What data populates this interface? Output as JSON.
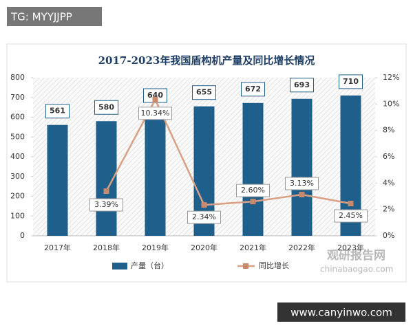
{
  "chart_data": {
    "type": "bar-line",
    "title": "2017-2023年我国盾构机产量及同比增长情况",
    "categories": [
      "2017年",
      "2018年",
      "2019年",
      "2020年",
      "2021年",
      "2022年",
      "2023年"
    ],
    "series": [
      {
        "name": "产量（台）",
        "type": "bar",
        "color": "#1f5f8b",
        "values": [
          561,
          580,
          640,
          655,
          672,
          693,
          710
        ]
      },
      {
        "name": "同比增长",
        "type": "line",
        "axis": "y2",
        "color": "#d9a084",
        "values": [
          null,
          3.39,
          10.34,
          2.34,
          2.6,
          3.13,
          2.45
        ],
        "value_labels": [
          null,
          "3.39%",
          "10.34%",
          "2.34%",
          "2.60%",
          "3.13%",
          "2.45%"
        ]
      }
    ],
    "ylim": [
      0,
      800
    ],
    "yticks": [
      0,
      100,
      200,
      300,
      400,
      500,
      600,
      700,
      800
    ],
    "y2lim": [
      0,
      12
    ],
    "y2ticks": [
      {
        "value": 0,
        "label": "0%"
      },
      {
        "value": 2,
        "label": "2%"
      },
      {
        "value": 4,
        "label": "4%"
      },
      {
        "value": 6,
        "label": "6%"
      },
      {
        "value": 8,
        "label": "8%"
      },
      {
        "value": 10,
        "label": "10%"
      },
      {
        "value": 12,
        "label": "12%"
      }
    ],
    "legend": "bottom"
  },
  "watermarks": {
    "top_left": "TG: MYYJJPP",
    "logo": "观研报告网",
    "logo_url": "chinabaogao.com",
    "bottom_right": "www.canyinwo.com"
  }
}
